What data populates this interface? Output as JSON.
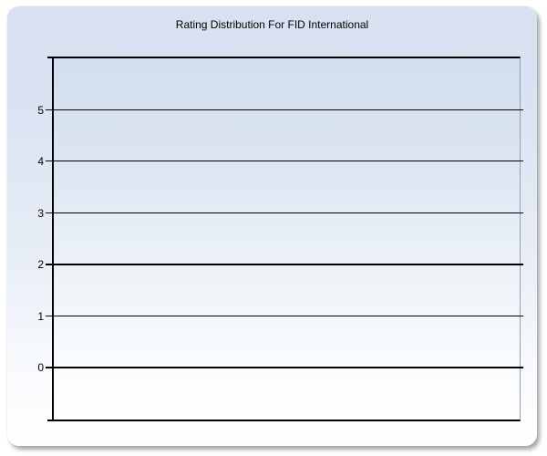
{
  "chart_data": {
    "type": "bar",
    "title": "Rating Distribution For FID International",
    "categories": [],
    "series": [],
    "values": [],
    "xlabel": "",
    "ylabel": "",
    "ylim": [
      -1,
      6
    ],
    "yticks": [
      5,
      4,
      3,
      2,
      1,
      0
    ],
    "grid": true,
    "legend": false
  },
  "colors": {
    "panel_gradient_top": "#d7e1f1",
    "panel_gradient_bottom": "#ffffff",
    "plot_gradient_top": "#d2deee",
    "plot_gradient_bottom": "#ffffff",
    "axis_line": "#000000",
    "plot_right_border": "#98a0ab",
    "gridline": "#000000",
    "title_text": "#000000",
    "tick_label_text": "#000000"
  }
}
